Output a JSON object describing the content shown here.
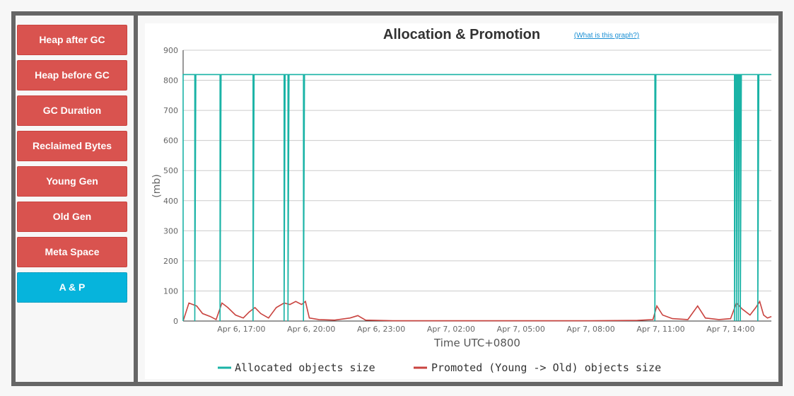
{
  "sidebar": {
    "items": [
      {
        "label": "Heap after GC",
        "active": false
      },
      {
        "label": "Heap before GC",
        "active": false
      },
      {
        "label": "GC Duration",
        "active": false
      },
      {
        "label": "Reclaimed Bytes",
        "active": false
      },
      {
        "label": "Young Gen",
        "active": false
      },
      {
        "label": "Old Gen",
        "active": false
      },
      {
        "label": "Meta Space",
        "active": false
      },
      {
        "label": "A & P",
        "active": true
      }
    ]
  },
  "help_link": "(What is this graph?)",
  "chart_data": {
    "type": "line",
    "title": "Allocation & Promotion",
    "xlabel": "Time UTC+0800",
    "ylabel": "(mb)",
    "ylim": [
      0,
      900
    ],
    "yticks": [
      0,
      100,
      200,
      300,
      400,
      500,
      600,
      700,
      800,
      900
    ],
    "xlim": [
      "2024-04-06 14:30",
      "2024-04-07 15:45"
    ],
    "xticks": [
      {
        "value": "2024-04-06 17:00",
        "label": "Apr 6, 17:00"
      },
      {
        "value": "2024-04-06 20:00",
        "label": "Apr 6, 20:00"
      },
      {
        "value": "2024-04-06 23:00",
        "label": "Apr 6, 23:00"
      },
      {
        "value": "2024-04-07 02:00",
        "label": "Apr 7, 02:00"
      },
      {
        "value": "2024-04-07 05:00",
        "label": "Apr 7, 05:00"
      },
      {
        "value": "2024-04-07 08:00",
        "label": "Apr 7, 08:00"
      },
      {
        "value": "2024-04-07 11:00",
        "label": "Apr 7, 11:00"
      },
      {
        "value": "2024-04-07 14:00",
        "label": "Apr 7, 14:00"
      }
    ],
    "grid": true,
    "legend_position": "bottom",
    "series": [
      {
        "name": "Allocated objects size",
        "color": "#1ab3a6",
        "baseline": 819,
        "drops_to_zero_at": [
          "2024-04-06 15:00",
          "2024-04-06 16:05",
          "2024-04-06 17:30",
          "2024-04-06 18:50",
          "2024-04-06 19:00",
          "2024-04-06 19:40",
          "2024-04-07 10:45",
          "2024-04-07 14:10",
          "2024-04-07 14:15",
          "2024-04-07 14:20",
          "2024-04-07 14:25",
          "2024-04-07 15:10"
        ]
      },
      {
        "name": "Promoted (Young -> Old) objects size",
        "color": "#c9433f",
        "points": [
          [
            "2024-04-06 14:30",
            0
          ],
          [
            "2024-04-06 14:45",
            60
          ],
          [
            "2024-04-06 15:05",
            50
          ],
          [
            "2024-04-06 15:20",
            25
          ],
          [
            "2024-04-06 15:40",
            15
          ],
          [
            "2024-04-06 15:55",
            5
          ],
          [
            "2024-04-06 16:10",
            60
          ],
          [
            "2024-04-06 16:25",
            45
          ],
          [
            "2024-04-06 16:45",
            20
          ],
          [
            "2024-04-06 17:05",
            10
          ],
          [
            "2024-04-06 17:20",
            30
          ],
          [
            "2024-04-06 17:35",
            45
          ],
          [
            "2024-04-06 17:50",
            25
          ],
          [
            "2024-04-06 18:10",
            10
          ],
          [
            "2024-04-06 18:30",
            45
          ],
          [
            "2024-04-06 18:50",
            60
          ],
          [
            "2024-04-06 19:05",
            55
          ],
          [
            "2024-04-06 19:20",
            65
          ],
          [
            "2024-04-06 19:35",
            55
          ],
          [
            "2024-04-06 19:45",
            65
          ],
          [
            "2024-04-06 19:55",
            10
          ],
          [
            "2024-04-06 20:20",
            5
          ],
          [
            "2024-04-06 21:00",
            3
          ],
          [
            "2024-04-06 21:40",
            10
          ],
          [
            "2024-04-06 22:00",
            18
          ],
          [
            "2024-04-06 22:20",
            3
          ],
          [
            "2024-04-06 23:30",
            1
          ],
          [
            "2024-04-07 02:00",
            1
          ],
          [
            "2024-04-07 05:00",
            1
          ],
          [
            "2024-04-07 08:00",
            1
          ],
          [
            "2024-04-07 10:00",
            2
          ],
          [
            "2024-04-07 10:40",
            5
          ],
          [
            "2024-04-07 10:50",
            50
          ],
          [
            "2024-04-07 11:05",
            20
          ],
          [
            "2024-04-07 11:30",
            8
          ],
          [
            "2024-04-07 12:10",
            5
          ],
          [
            "2024-04-07 12:35",
            50
          ],
          [
            "2024-04-07 12:55",
            10
          ],
          [
            "2024-04-07 13:30",
            5
          ],
          [
            "2024-04-07 14:00",
            8
          ],
          [
            "2024-04-07 14:15",
            60
          ],
          [
            "2024-04-07 14:30",
            40
          ],
          [
            "2024-04-07 14:50",
            20
          ],
          [
            "2024-04-07 15:05",
            45
          ],
          [
            "2024-04-07 15:15",
            65
          ],
          [
            "2024-04-07 15:25",
            20
          ],
          [
            "2024-04-07 15:35",
            10
          ],
          [
            "2024-04-07 15:45",
            15
          ]
        ]
      }
    ]
  }
}
